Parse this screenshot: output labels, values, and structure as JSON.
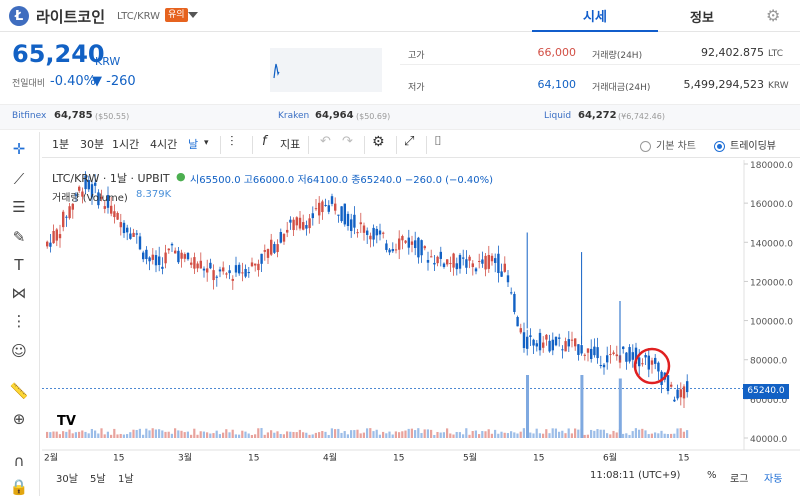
{
  "header": {
    "coin_logo": "Ł",
    "coin_name": "라이트코인",
    "pair": "LTC/KRW",
    "badge": "유의",
    "tabs": [
      "시세",
      "정보"
    ]
  },
  "price": {
    "value": "65,240",
    "unit": "KRW",
    "change_label": "전일대비",
    "change_rate": "-0.40%",
    "change_amount": "▼ -260"
  },
  "stats": {
    "high_label": "고가",
    "high": "66,000",
    "low_label": "저가",
    "low": "64,100",
    "volume_label": "거래량(24H)",
    "volume": "92,402.875",
    "volume_unit": "LTC",
    "amount_label": "거래대금(24H)",
    "amount": "5,499,294,523",
    "amount_unit": "KRW"
  },
  "exchanges": [
    {
      "name": "Bitfinex",
      "price": "64,785",
      "sub": "($50.55)"
    },
    {
      "name": "Kraken",
      "price": "64,964",
      "sub": "($50.69)"
    },
    {
      "name": "Liquid",
      "price": "64,272",
      "sub": "(¥6,742.46)"
    }
  ],
  "toolbar": {
    "intervals": [
      "1분",
      "30분",
      "1시간",
      "4시간",
      "날"
    ],
    "indicator_label": "지표",
    "view_basic": "기본 차트",
    "view_trading": "트레이딩뷰"
  },
  "legend": {
    "title": "LTC/KRW · 1날 · UPBIT",
    "ohlc": "시65500.0 고66000.0 저64100.0 종65240.0 −260.0 (−0.40%)",
    "volume_label": "거래량 (Volume)",
    "volume_value": "8.379K"
  },
  "bottom": {
    "ranges": [
      "30날",
      "5날",
      "1날"
    ],
    "time": "11:08:11 (UTC+9)",
    "percent": "%",
    "log": "로그",
    "auto": "자동"
  },
  "current_price_tag": "65240.0",
  "colors": {
    "accent": "#1261c4",
    "up": "#d24f45",
    "down": "#1261c4"
  },
  "chart_data": {
    "type": "candlestick",
    "title": "LTC/KRW · 1날 · UPBIT",
    "y_ticks": [
      "180000.0",
      "160000.0",
      "140000.0",
      "120000.0",
      "100000.0",
      "80000.0",
      "60000.0",
      "40000.0"
    ],
    "x_ticks": [
      "2월",
      "15",
      "3월",
      "15",
      "4월",
      "15",
      "5월",
      "15",
      "6월",
      "15"
    ],
    "ylim": [
      40000,
      180000
    ],
    "current_price": 65240,
    "trend_points": [
      [
        0,
        138000
      ],
      [
        4,
        145000
      ],
      [
        8,
        158000
      ],
      [
        12,
        170000
      ],
      [
        16,
        165000
      ],
      [
        20,
        158000
      ],
      [
        24,
        150000
      ],
      [
        28,
        145000
      ],
      [
        32,
        132000
      ],
      [
        36,
        128000
      ],
      [
        40,
        137000
      ],
      [
        44,
        131000
      ],
      [
        48,
        130000
      ],
      [
        52,
        124000
      ],
      [
        56,
        123000
      ],
      [
        60,
        125000
      ],
      [
        64,
        127000
      ],
      [
        68,
        132000
      ],
      [
        72,
        139000
      ],
      [
        76,
        148000
      ],
      [
        80,
        150000
      ],
      [
        84,
        153000
      ],
      [
        88,
        160000
      ],
      [
        92,
        157000
      ],
      [
        96,
        150000
      ],
      [
        100,
        147000
      ],
      [
        104,
        143000
      ],
      [
        108,
        138000
      ],
      [
        112,
        142000
      ],
      [
        116,
        138000
      ],
      [
        120,
        133000
      ],
      [
        124,
        131000
      ],
      [
        128,
        130000
      ],
      [
        132,
        129000
      ],
      [
        136,
        128000
      ],
      [
        140,
        132000
      ],
      [
        144,
        125000
      ],
      [
        146,
        112000
      ],
      [
        148,
        96000
      ],
      [
        150,
        88000
      ],
      [
        152,
        90000
      ],
      [
        156,
        89000
      ],
      [
        160,
        88000
      ],
      [
        164,
        87000
      ],
      [
        168,
        86000
      ],
      [
        172,
        82000
      ],
      [
        176,
        80000
      ],
      [
        180,
        83000
      ],
      [
        184,
        82000
      ],
      [
        188,
        80000
      ],
      [
        190,
        77000
      ],
      [
        192,
        74000
      ],
      [
        194,
        69000
      ],
      [
        196,
        63000
      ],
      [
        198,
        60000
      ],
      [
        200,
        65000
      ]
    ],
    "volume_spikes": [
      {
        "index": 150,
        "value": 0.9
      },
      {
        "index": 167,
        "value": 0.9
      },
      {
        "index": 179,
        "value": 0.85
      }
    ]
  }
}
